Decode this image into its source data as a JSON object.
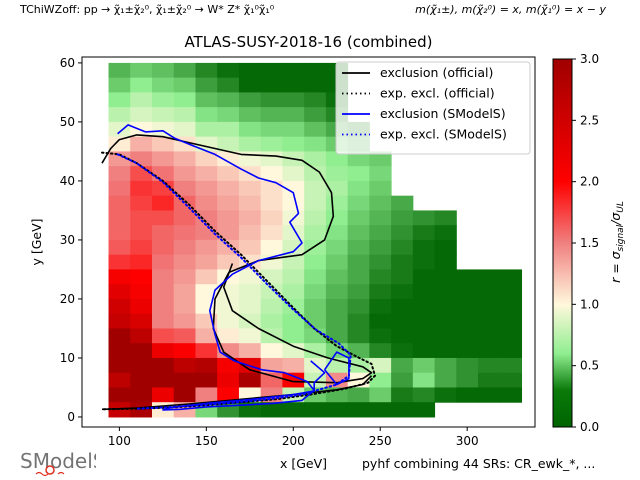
{
  "figure": {
    "supertitle_left": "TChiWZoff: pp → χ̃₁±χ̃₂⁰, χ̃₁±χ̃₂⁰ → W* Z* χ̃₁⁰χ̃₁⁰",
    "supertitle_right": "m(χ̃₁±), m(χ̃₂⁰) = x, m(χ̃₁⁰) = x − y",
    "footnote": "pyhf combining 44 SRs: CR_ewk_*, ...",
    "logo_text": "SModelS"
  },
  "chart_data": {
    "type": "heatmap",
    "title": "ATLAS-SUSY-2018-16 (combined)",
    "xlabel": "x [GeV]",
    "ylabel": "y [GeV]",
    "xlim": [
      78.5,
      339
    ],
    "ylim": [
      -1.7,
      61
    ],
    "xticks": [
      100,
      150,
      200,
      250,
      300
    ],
    "yticks": [
      0,
      10,
      20,
      30,
      40,
      50,
      60
    ],
    "grid": false,
    "colorbar": {
      "label": "r = σ_signal/σ_UL",
      "range": [
        0,
        3
      ],
      "ticks": [
        "0.0",
        "0.5",
        "1.0",
        "1.5",
        "2.0",
        "2.5",
        "3.0"
      ],
      "colors": [
        [
          0,
          "#006400"
        ],
        [
          0.6,
          "#90ee90"
        ],
        [
          1.0,
          "#fff8dc"
        ],
        [
          1.5,
          "#f08080"
        ],
        [
          2.0,
          "#ff0000"
        ],
        [
          3.0,
          "#a00000"
        ]
      ]
    },
    "legend": {
      "placement": "top-right",
      "entries": [
        {
          "label": "exclusion (official)",
          "color": "#000000",
          "style": "solid"
        },
        {
          "label": "exp. excl. (official)",
          "color": "#000000",
          "style": "dotted"
        },
        {
          "label": "exclusion (SModelS)",
          "color": "#0000ff",
          "style": "solid"
        },
        {
          "label": "exp. excl. (SModelS)",
          "color": "#0000ff",
          "style": "dotted"
        }
      ]
    },
    "cell_size": [
      12.5,
      2.5
    ],
    "x_centers": [
      100,
      112.5,
      125,
      137.5,
      150,
      162.5,
      175,
      187.5,
      200,
      212.5,
      225,
      237.5,
      250,
      262.5,
      275,
      287.5,
      300,
      312.5,
      325
    ],
    "y_centers": [
      58.75,
      56.25,
      53.75,
      51.25,
      48.75,
      46.25,
      43.75,
      41.25,
      38.75,
      36.25,
      33.75,
      31.25,
      28.75,
      26.25,
      23.75,
      21.25,
      18.75,
      16.25,
      13.75,
      11.25,
      8.75,
      6.25,
      3.75,
      1.25
    ],
    "r_values": [
      [
        0.35,
        0.45,
        0.4,
        0.3,
        0.15,
        0.05,
        0.02,
        0.02,
        0.02,
        0.02,
        0.02,
        null,
        null,
        null,
        null,
        null,
        null,
        null,
        null
      ],
      [
        0.45,
        0.6,
        0.5,
        0.45,
        0.25,
        0.15,
        0.02,
        0.02,
        0.02,
        0.02,
        0.02,
        null,
        null,
        null,
        null,
        null,
        null,
        null,
        null
      ],
      [
        0.6,
        0.75,
        0.65,
        0.6,
        0.4,
        0.35,
        0.25,
        0.2,
        0.2,
        0.15,
        0.05,
        null,
        null,
        null,
        null,
        null,
        null,
        null,
        null
      ],
      [
        0.75,
        0.85,
        0.8,
        0.75,
        0.55,
        0.5,
        0.4,
        0.35,
        0.35,
        0.25,
        0.15,
        null,
        null,
        null,
        null,
        null,
        null,
        null,
        null
      ],
      [
        0.9,
        1.0,
        0.95,
        0.9,
        0.7,
        0.7,
        0.55,
        0.5,
        0.5,
        0.4,
        0.3,
        0.2,
        null,
        null,
        null,
        null,
        null,
        null,
        null
      ],
      [
        1.05,
        1.3,
        1.2,
        1.1,
        0.9,
        0.8,
        0.7,
        0.65,
        0.6,
        0.55,
        0.45,
        0.35,
        null,
        null,
        null,
        null,
        null,
        null,
        null
      ],
      [
        1.4,
        1.5,
        1.4,
        1.3,
        1.15,
        1.05,
        0.95,
        0.9,
        0.8,
        0.7,
        0.6,
        0.5,
        0.45,
        null,
        null,
        null,
        null,
        null,
        null
      ],
      [
        1.5,
        1.7,
        1.55,
        1.4,
        1.3,
        1.2,
        1.1,
        1.0,
        0.9,
        0.75,
        0.65,
        0.6,
        0.5,
        null,
        null,
        null,
        null,
        null,
        null
      ],
      [
        1.55,
        1.8,
        1.75,
        1.5,
        1.4,
        1.3,
        1.2,
        1.1,
        1.0,
        0.8,
        0.7,
        0.55,
        0.45,
        null,
        null,
        null,
        null,
        null,
        null
      ],
      [
        1.6,
        1.75,
        1.85,
        1.6,
        1.45,
        1.35,
        1.25,
        1.1,
        1.0,
        0.8,
        0.65,
        0.5,
        0.4,
        0.3,
        null,
        null,
        null,
        null,
        null
      ],
      [
        1.6,
        1.7,
        1.7,
        1.6,
        1.5,
        1.4,
        1.3,
        1.15,
        0.95,
        0.75,
        0.6,
        0.45,
        0.35,
        0.25,
        0.2,
        0.15,
        null,
        null,
        null
      ],
      [
        1.6,
        1.7,
        1.6,
        1.55,
        1.5,
        1.4,
        1.25,
        1.1,
        0.9,
        0.7,
        0.55,
        0.4,
        0.3,
        0.2,
        0.1,
        0.05,
        null,
        null,
        null
      ],
      [
        1.65,
        1.75,
        1.6,
        1.5,
        1.4,
        1.3,
        1.2,
        1.0,
        0.85,
        0.65,
        0.5,
        0.35,
        0.25,
        0.15,
        0.05,
        0.02,
        null,
        null,
        null
      ],
      [
        1.8,
        1.85,
        1.55,
        1.45,
        1.35,
        1.2,
        1.1,
        0.95,
        0.8,
        0.6,
        0.45,
        0.3,
        0.2,
        0.1,
        0.05,
        0.02,
        null,
        null,
        null
      ],
      [
        2.1,
        2.0,
        1.5,
        1.4,
        1.2,
        1.0,
        0.95,
        0.85,
        0.75,
        0.55,
        0.4,
        0.3,
        0.15,
        0.1,
        0.02,
        0.02,
        0.02,
        0.02,
        0.02
      ],
      [
        2.3,
        2.1,
        1.5,
        1.35,
        1.0,
        0.95,
        0.9,
        0.8,
        0.7,
        0.5,
        0.35,
        0.25,
        0.1,
        0.05,
        0.02,
        0.02,
        0.02,
        0.02,
        0.02
      ],
      [
        2.5,
        2.2,
        1.5,
        1.35,
        1.0,
        0.95,
        0.9,
        0.75,
        0.65,
        0.45,
        0.3,
        0.2,
        0.05,
        0.02,
        0.02,
        0.02,
        0.02,
        0.02,
        0.02
      ],
      [
        2.6,
        2.4,
        1.5,
        1.4,
        1.2,
        0.95,
        0.85,
        0.7,
        0.6,
        0.45,
        0.3,
        0.15,
        0.02,
        0.02,
        0.02,
        0.02,
        0.02,
        0.02,
        0.02
      ],
      [
        3.0,
        2.7,
        1.7,
        1.65,
        1.3,
        1.05,
        0.95,
        0.75,
        0.6,
        0.5,
        0.3,
        0.15,
        0.05,
        0.02,
        0.02,
        0.02,
        0.02,
        0.02,
        0.02
      ],
      [
        3.0,
        3.0,
        2.2,
        2.05,
        1.8,
        1.45,
        1.3,
        1.0,
        0.9,
        0.7,
        0.5,
        0.35,
        0.15,
        0.05,
        0.02,
        0.02,
        0.02,
        0.02,
        0.02
      ],
      [
        3.0,
        3.0,
        3.0,
        2.7,
        2.8,
        2.1,
        2.3,
        1.35,
        1.3,
        0.9,
        0.75,
        0.7,
        0.85,
        0.3,
        0.45,
        0.3,
        0.2,
        0.15,
        0.15
      ],
      [
        2.7,
        3.0,
        3.0,
        3.0,
        3.0,
        2.2,
        2.9,
        1.6,
        2.1,
        0.8,
        1.45,
        1.0,
        0.6,
        0.25,
        0.55,
        0.3,
        0.2,
        0.1,
        0.1
      ],
      [
        3.0,
        3.0,
        2.2,
        3.0,
        1.5,
        2.0,
        1.0,
        1.5,
        0.8,
        0.45,
        0.35,
        0.3,
        0.45,
        0.1,
        0.15,
        0.05,
        0.02,
        0.02,
        0.02
      ],
      [
        2.6,
        2.9,
        1.05,
        1.3,
        0.5,
        0.2,
        0.05,
        0.02,
        0.02,
        0.02,
        0.02,
        0.02,
        0.02,
        0.02,
        0.02,
        null,
        null,
        null,
        null
      ]
    ],
    "curves": {
      "exclusion_official": [
        [
          90,
          43
        ],
        [
          95,
          45.5
        ],
        [
          100,
          47
        ],
        [
          110,
          47.8
        ],
        [
          125,
          47.5
        ],
        [
          140,
          46.5
        ],
        [
          155,
          45.5
        ],
        [
          170,
          44.5
        ],
        [
          190,
          44.2
        ],
        [
          205,
          43.5
        ],
        [
          215,
          41.5
        ],
        [
          222,
          38
        ],
        [
          223,
          34
        ],
        [
          218,
          30
        ],
        [
          205,
          27.5
        ],
        [
          180,
          26.5
        ],
        [
          163,
          24.5
        ],
        [
          155,
          20
        ],
        [
          154,
          15
        ],
        [
          160,
          11
        ],
        [
          175,
          8
        ],
        [
          200,
          6
        ],
        [
          225,
          5.8
        ],
        [
          240,
          6.5
        ],
        [
          245,
          7.5
        ],
        [
          240,
          8.5
        ],
        [
          220,
          10
        ],
        [
          200,
          12
        ],
        [
          180,
          15
        ],
        [
          165,
          18
        ],
        [
          160,
          22
        ],
        [
          165,
          26
        ]
      ],
      "exclusion_official_lower": [
        [
          90,
          1.3
        ],
        [
          110,
          1.5
        ],
        [
          140,
          2.2
        ],
        [
          170,
          3.0
        ],
        [
          200,
          3.8
        ],
        [
          225,
          4.6
        ],
        [
          240,
          5.5
        ],
        [
          245,
          7
        ]
      ],
      "exp_official": [
        [
          90,
          44.8
        ],
        [
          100,
          44.5
        ],
        [
          110,
          43
        ],
        [
          125,
          40
        ],
        [
          140,
          36
        ],
        [
          155,
          31.5
        ],
        [
          170,
          27.5
        ],
        [
          185,
          23
        ],
        [
          200,
          18.5
        ],
        [
          212,
          15
        ],
        [
          225,
          12
        ],
        [
          238,
          10
        ],
        [
          245,
          9
        ],
        [
          247,
          7
        ],
        [
          243,
          5.8
        ],
        [
          230,
          4.8
        ],
        [
          210,
          3.8
        ],
        [
          190,
          3.0
        ],
        [
          170,
          2.5
        ],
        [
          150,
          2.0
        ],
        [
          130,
          1.6
        ],
        [
          110,
          1.4
        ],
        [
          90,
          1.3
        ]
      ],
      "exclusion_smodels": [
        [
          99,
          48
        ],
        [
          105,
          49.5
        ],
        [
          115,
          48.3
        ],
        [
          125,
          48.5
        ],
        [
          132,
          47.2
        ],
        [
          142,
          46
        ],
        [
          155,
          44.5
        ],
        [
          170,
          42
        ],
        [
          180,
          40.5
        ],
        [
          190,
          39.7
        ],
        [
          200,
          38
        ],
        [
          203,
          34.5
        ],
        [
          198,
          33
        ],
        [
          205,
          29.5
        ],
        [
          200,
          28
        ],
        [
          180,
          26.5
        ],
        [
          165,
          24.2
        ],
        [
          155,
          21.5
        ],
        [
          152,
          18
        ],
        [
          155,
          14
        ],
        [
          158,
          11
        ],
        [
          166,
          9.5
        ],
        [
          182,
          8
        ],
        [
          195,
          7.5
        ],
        [
          208,
          6
        ],
        [
          212,
          4.5
        ],
        [
          205,
          2.8
        ],
        [
          188,
          2.3
        ],
        [
          170,
          2
        ],
        [
          150,
          1.7
        ],
        [
          135,
          1.3
        ],
        [
          125,
          1.2
        ],
        [
          130,
          1.6
        ],
        [
          150,
          2.3
        ],
        [
          180,
          3.1
        ],
        [
          200,
          3.8
        ],
        [
          212,
          4.4
        ],
        [
          212,
          5.8
        ],
        [
          218,
          7.5
        ],
        [
          210,
          9.5
        ]
      ],
      "exclusion_smodels_loop": [
        [
          218,
          8
        ],
        [
          225,
          11
        ],
        [
          232,
          10
        ],
        [
          232,
          6.5
        ],
        [
          225,
          5.5
        ],
        [
          218,
          8
        ]
      ],
      "exp_smodels": [
        [
          99,
          44.5
        ],
        [
          110,
          43
        ],
        [
          125,
          39.8
        ],
        [
          140,
          35.5
        ],
        [
          155,
          31
        ],
        [
          170,
          27
        ],
        [
          185,
          22.5
        ],
        [
          200,
          18.2
        ],
        [
          213,
          14.8
        ],
        [
          226,
          12.5
        ],
        [
          233,
          10.5
        ],
        [
          232,
          7
        ],
        [
          225,
          5.5
        ],
        [
          205,
          3.8
        ],
        [
          185,
          3.0
        ],
        [
          165,
          2.4
        ],
        [
          145,
          2.0
        ],
        [
          125,
          1.6
        ],
        [
          110,
          1.4
        ]
      ]
    }
  }
}
